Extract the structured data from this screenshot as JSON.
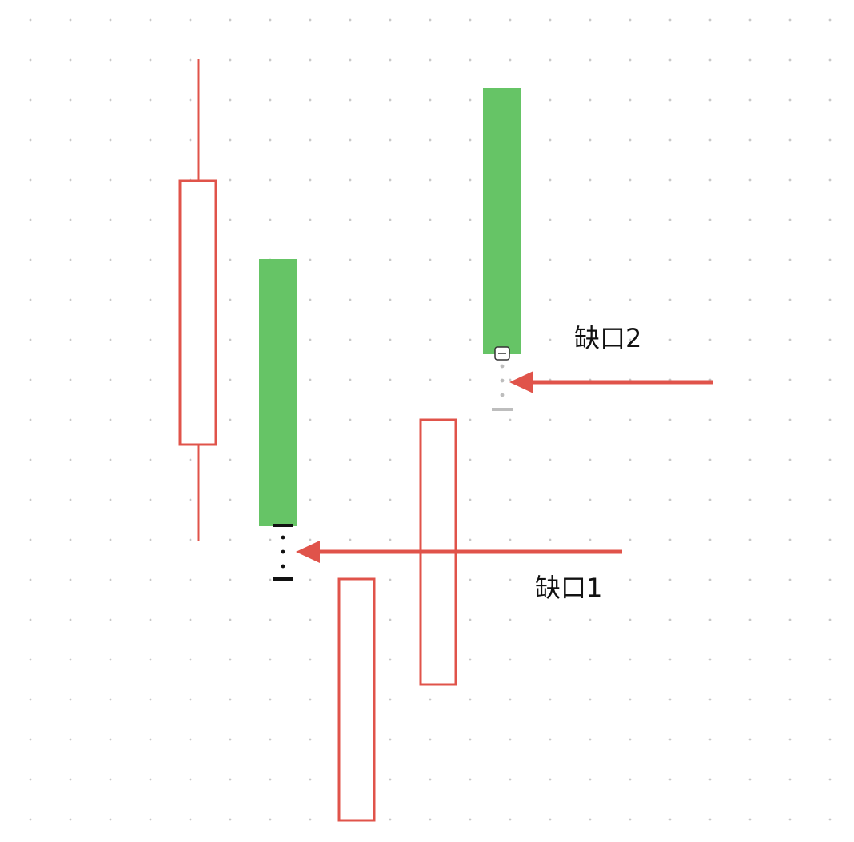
{
  "colors": {
    "bullish_outline": "#e0534a",
    "bearish_fill": "#66c466",
    "arrow": "#e0534a",
    "gap_marker_1": "#111111",
    "gap_marker_2": "#bdbdbd",
    "dot_grid": "#c8c8c8"
  },
  "annotations": {
    "gap1_label": "缺口1",
    "gap2_label": "缺口2"
  }
}
